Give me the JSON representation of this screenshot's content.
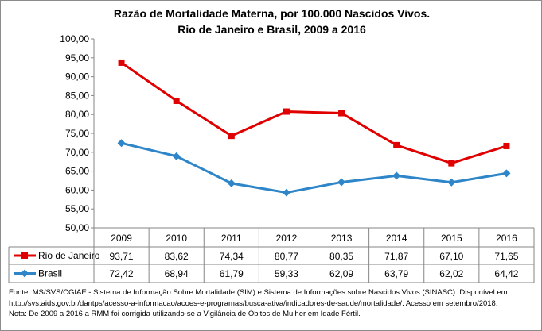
{
  "chart_data": {
    "type": "line",
    "title": "Razão de Mortalidade Materna, por 100.000 Nascidos Vivos.",
    "subtitle": "Rio de Janeiro e Brasil, 2009 a 2016",
    "categories": [
      "2009",
      "2010",
      "2011",
      "2012",
      "2013",
      "2014",
      "2015",
      "2016"
    ],
    "ylim": [
      50,
      100
    ],
    "yticks": [
      "50,00",
      "55,00",
      "60,00",
      "65,00",
      "70,00",
      "75,00",
      "80,00",
      "85,00",
      "90,00",
      "95,00",
      "100,00"
    ],
    "grid": false,
    "legend": "data-table",
    "series": [
      {
        "name": "Rio de Janeiro",
        "color": "#e00000",
        "marker": "square",
        "values": [
          93.71,
          83.62,
          74.34,
          80.77,
          80.35,
          71.87,
          67.1,
          71.65
        ],
        "labels": [
          "93,71",
          "83,62",
          "74,34",
          "80,77",
          "80,35",
          "71,87",
          "67,10",
          "71,65"
        ]
      },
      {
        "name": "Brasil",
        "color": "#2e86c8",
        "marker": "diamond",
        "values": [
          72.42,
          68.94,
          61.79,
          59.33,
          62.09,
          63.79,
          62.02,
          64.42
        ],
        "labels": [
          "72,42",
          "68,94",
          "61,79",
          "59,33",
          "62,09",
          "63,79",
          "62,02",
          "64,42"
        ]
      }
    ]
  },
  "notes": [
    "Fonte: MS/SVS/CGIAE - Sistema de Informação Sobre Mortalidade (SIM) e Sistema de Informações sobre Nascidos Vivos (SINASC). Disponível em",
    "http://svs.aids.gov.br/dantps/acesso-a-informacao/acoes-e-programas/busca-ativa/indicadores-de-saude/mortalidade/. Acesso em setembro/2018.",
    "Nota: De 2009 a 2016 a RMM foi corrigida utilizando-se a Vigilância de Óbitos de Mulher em Idade Fértil."
  ]
}
